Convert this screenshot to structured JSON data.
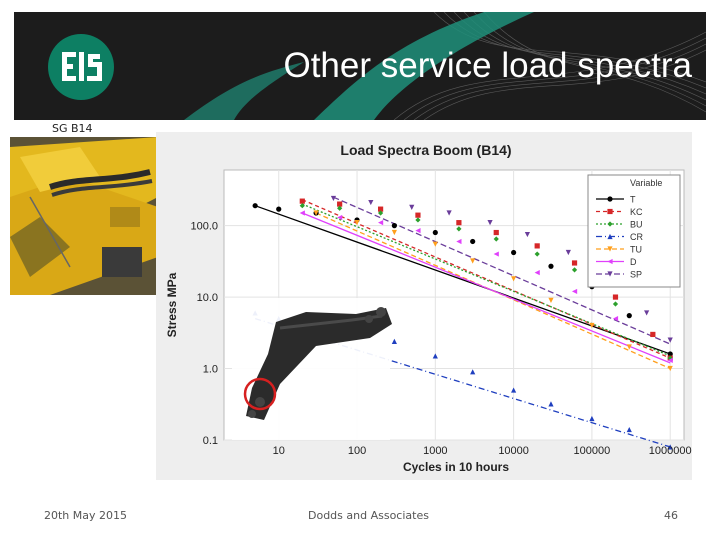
{
  "slide": {
    "title": "Other service load spectra",
    "logo_text": "EIS",
    "photo_caption": "SG B14",
    "footer_date": "20th May 2015",
    "footer_center": "Dodds and Associates",
    "page_number": "46"
  },
  "colors": {
    "banner_bg": "#1c1c1c",
    "logo_green": "#0d7f63",
    "accent_teal": "#1f8f7a",
    "machine_yellow": "#e3b81e",
    "boom_dark": "#2b2b2b",
    "highlight_circle": "#d62020"
  },
  "chart_data": {
    "type": "scatter",
    "title": "Load Spectra Boom (B14)",
    "xlabel": "Cycles in 10 hours",
    "ylabel": "Stress MPa",
    "xscale": "log",
    "yscale": "log",
    "xlim": [
      2,
      1500000
    ],
    "ylim": [
      0.1,
      600
    ],
    "xticks": [
      "10",
      "100",
      "1000",
      "10000",
      "100000",
      "1000000"
    ],
    "yticks": [
      "100.0",
      "10.0",
      "1.0",
      "0.1"
    ],
    "legend_title": "Variable",
    "legend_position": "top-right",
    "grid": true,
    "series": [
      {
        "name": "T",
        "color": "#000000",
        "marker": "circle",
        "points": [
          [
            5,
            190
          ],
          [
            10,
            170
          ],
          [
            30,
            150
          ],
          [
            100,
            120
          ],
          [
            300,
            100
          ],
          [
            1000,
            80
          ],
          [
            3000,
            60
          ],
          [
            10000,
            42
          ],
          [
            30000,
            27
          ],
          [
            100000,
            14
          ],
          [
            300000,
            5.5
          ],
          [
            1000000,
            1.6
          ]
        ]
      },
      {
        "name": "KC",
        "color": "#d62728",
        "marker": "square",
        "points": [
          [
            20,
            220
          ],
          [
            60,
            200
          ],
          [
            200,
            170
          ],
          [
            600,
            140
          ],
          [
            2000,
            110
          ],
          [
            6000,
            80
          ],
          [
            20000,
            52
          ],
          [
            60000,
            30
          ],
          [
            200000,
            10
          ],
          [
            600000,
            3
          ],
          [
            1000000,
            1.4
          ]
        ]
      },
      {
        "name": "BU",
        "color": "#2ca02c",
        "marker": "diamond",
        "points": [
          [
            20,
            190
          ],
          [
            60,
            175
          ],
          [
            200,
            150
          ],
          [
            600,
            120
          ],
          [
            2000,
            90
          ],
          [
            6000,
            65
          ],
          [
            20000,
            40
          ],
          [
            60000,
            24
          ],
          [
            200000,
            8
          ],
          [
            1000000,
            1.4
          ]
        ]
      },
      {
        "name": "CR",
        "color": "#1f3fbf",
        "marker": "triangle",
        "points": [
          [
            5,
            6
          ],
          [
            10,
            5
          ],
          [
            30,
            4
          ],
          [
            100,
            3.2
          ],
          [
            300,
            2.4
          ],
          [
            1000,
            1.5
          ],
          [
            3000,
            0.9
          ],
          [
            10000,
            0.5
          ],
          [
            30000,
            0.32
          ],
          [
            100000,
            0.2
          ],
          [
            300000,
            0.14
          ],
          [
            1000000,
            0.08
          ]
        ]
      },
      {
        "name": "TU",
        "color": "#ff9f1c",
        "marker": "triangle-down",
        "points": [
          [
            30,
            150
          ],
          [
            100,
            110
          ],
          [
            300,
            80
          ],
          [
            1000,
            55
          ],
          [
            3000,
            32
          ],
          [
            10000,
            18
          ],
          [
            30000,
            9
          ],
          [
            100000,
            4
          ],
          [
            300000,
            2
          ],
          [
            1000000,
            1
          ]
        ]
      },
      {
        "name": "D",
        "color": "#e040fb",
        "marker": "triangle-left",
        "points": [
          [
            20,
            150
          ],
          [
            60,
            130
          ],
          [
            200,
            110
          ],
          [
            600,
            85
          ],
          [
            2000,
            60
          ],
          [
            6000,
            40
          ],
          [
            20000,
            22
          ],
          [
            60000,
            12
          ],
          [
            200000,
            5
          ],
          [
            1000000,
            1.3
          ]
        ]
      },
      {
        "name": "SP",
        "color": "#6a3d9a",
        "marker": "triangle-down",
        "points": [
          [
            50,
            240
          ],
          [
            150,
            210
          ],
          [
            500,
            180
          ],
          [
            1500,
            150
          ],
          [
            5000,
            110
          ],
          [
            15000,
            75
          ],
          [
            50000,
            42
          ],
          [
            150000,
            20
          ],
          [
            500000,
            6
          ],
          [
            1000000,
            2.5
          ]
        ]
      }
    ],
    "fit_lines": [
      {
        "series": "T",
        "from": [
          5,
          190
        ],
        "to": [
          1000000,
          1.6
        ],
        "dash": ""
      },
      {
        "series": "KC",
        "from": [
          20,
          230
        ],
        "to": [
          1000000,
          1.4
        ],
        "dash": "4,3"
      },
      {
        "series": "BU",
        "from": [
          20,
          200
        ],
        "to": [
          1000000,
          1.5
        ],
        "dash": "2,2"
      },
      {
        "series": "CR",
        "from": [
          5,
          5
        ],
        "to": [
          1000000,
          0.08
        ],
        "dash": "6,3,1,3"
      },
      {
        "series": "TU",
        "from": [
          30,
          150
        ],
        "to": [
          1000000,
          1.0
        ],
        "dash": "5,3"
      },
      {
        "series": "D",
        "from": [
          20,
          150
        ],
        "to": [
          1000000,
          1.2
        ],
        "dash": ""
      },
      {
        "series": "SP",
        "from": [
          50,
          250
        ],
        "to": [
          1000000,
          2.2
        ],
        "dash": "6,3"
      }
    ]
  }
}
